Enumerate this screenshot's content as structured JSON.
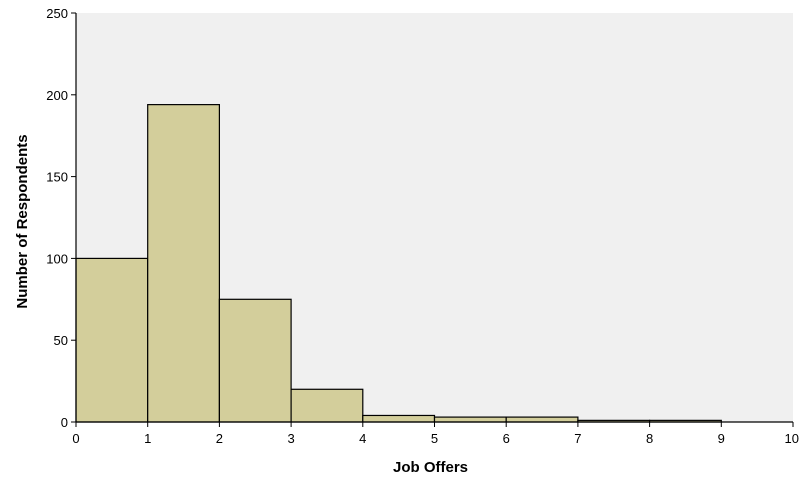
{
  "chart_data": {
    "type": "bar",
    "subtype": "histogram",
    "xlabel": "Job Offers",
    "ylabel": "Number of Respondents",
    "xlim": [
      0,
      10
    ],
    "ylim": [
      0,
      250
    ],
    "x_ticks": [
      "0",
      "1",
      "2",
      "3",
      "4",
      "5",
      "6",
      "7",
      "8",
      "9",
      "10"
    ],
    "y_ticks": [
      "0",
      "50",
      "100",
      "150",
      "200",
      "250"
    ],
    "bins": [
      {
        "start": 0,
        "end": 1,
        "count": 100
      },
      {
        "start": 1,
        "end": 2,
        "count": 194
      },
      {
        "start": 2,
        "end": 3,
        "count": 75
      },
      {
        "start": 3,
        "end": 4,
        "count": 20
      },
      {
        "start": 4,
        "end": 5,
        "count": 4
      },
      {
        "start": 5,
        "end": 6,
        "count": 3
      },
      {
        "start": 6,
        "end": 7,
        "count": 3
      },
      {
        "start": 7,
        "end": 8,
        "count": 1
      },
      {
        "start": 8,
        "end": 9,
        "count": 1
      }
    ],
    "grid": false,
    "legend": "none",
    "colors": {
      "plot_background": "#f0f0f0",
      "bar_fill": "#d3ce9b",
      "bar_stroke": "#000000",
      "axis": "#000000"
    }
  }
}
